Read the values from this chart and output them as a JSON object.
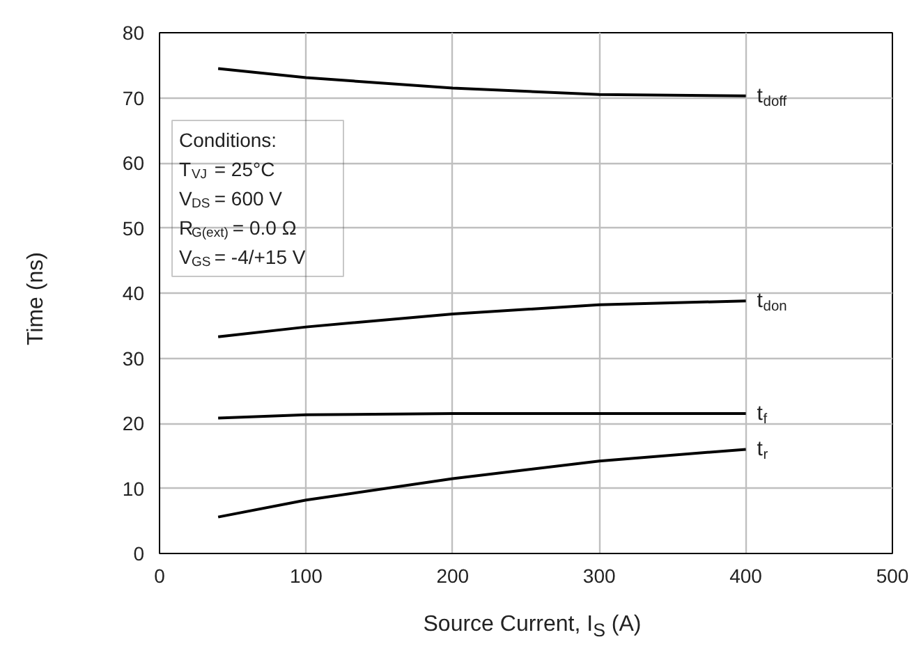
{
  "chart_data": {
    "type": "line",
    "xlabel": "Source Current, I$_{S}$ (A)",
    "ylabel": "Time (ns)",
    "x": [
      40,
      100,
      200,
      300,
      400
    ],
    "series": [
      {
        "name": "t$_{doff}$",
        "color": "#000000",
        "values": [
          74.5,
          73.1,
          71.5,
          70.5,
          70.3
        ]
      },
      {
        "name": "t$_{don}$",
        "color": "#000000",
        "values": [
          33.3,
          34.8,
          36.8,
          38.2,
          38.8
        ]
      },
      {
        "name": "t$_{f}$",
        "color": "#000000",
        "values": [
          20.8,
          21.3,
          21.5,
          21.5,
          21.5
        ]
      },
      {
        "name": "t$_{r}$",
        "color": "#000000",
        "values": [
          5.6,
          8.2,
          11.5,
          14.2,
          16.0
        ]
      }
    ],
    "xlim": [
      0,
      500
    ],
    "xticks": [
      0,
      100,
      200,
      300,
      400,
      500
    ],
    "ylim": [
      0,
      80
    ],
    "yticks": [
      0,
      10,
      20,
      30,
      40,
      50,
      60,
      70,
      80
    ],
    "grid": true,
    "marker": "none",
    "line_style": "solid",
    "annotations": [
      "Conditions:",
      "T$_{VJ}$ = 25°C",
      "V$_{DS}$ = 600 V",
      "R$_{G(ext)}$ = 0.0 Ω",
      "V$_{GS}$ = -4/+15 V"
    ]
  }
}
